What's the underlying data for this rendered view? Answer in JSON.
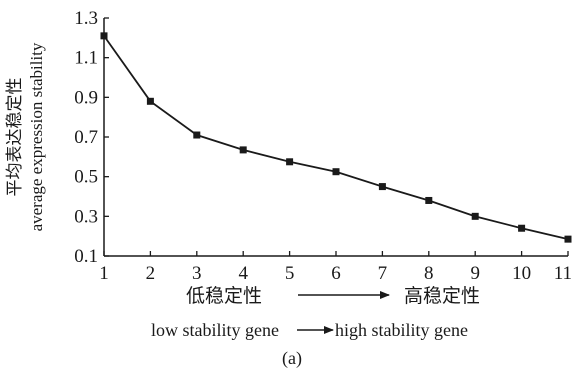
{
  "chart_data": {
    "type": "line",
    "x": [
      1,
      2,
      3,
      4,
      5,
      6,
      7,
      8,
      9,
      10,
      11
    ],
    "series": [
      {
        "values": [
          1.21,
          0.88,
          0.71,
          0.635,
          0.575,
          0.525,
          0.45,
          0.38,
          0.3,
          0.24,
          0.185
        ]
      }
    ],
    "xlim": [
      1,
      11
    ],
    "ylim": [
      0.1,
      1.3
    ],
    "xticks": [
      "1",
      "2",
      "3",
      "4",
      "5",
      "6",
      "7",
      "8",
      "9",
      "10",
      "11"
    ],
    "yticks": [
      "0.1",
      "0.3",
      "0.5",
      "0.7",
      "0.9",
      "1.1",
      "1.3"
    ],
    "ylabel_cn": "平均表达稳定性",
    "ylabel_en": "average expression stability",
    "xcaption_cn_left": "低稳定性",
    "xcaption_cn_right": "高稳定性",
    "xcaption_en_left": "low stability gene",
    "xcaption_en_right": "high stability gene",
    "panel_label": "(a)",
    "grid": false,
    "line_color": "#1a1a1a"
  }
}
